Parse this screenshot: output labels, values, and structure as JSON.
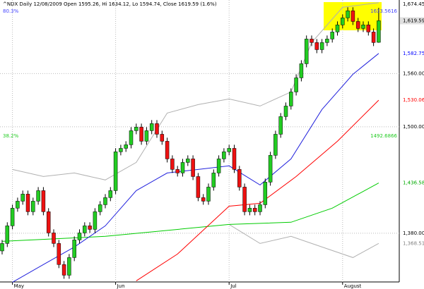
{
  "chart_data": {
    "type": "candlestick",
    "title": "^NDX Daily 12/08/2009 Open 1595.26, Hi 1634.12, Lo 1594.74, Close 1619.59 (1.6%)",
    "categories": [
      null,
      null,
      "May",
      null,
      null,
      null,
      null,
      null,
      null,
      null,
      null,
      null,
      null,
      null,
      null,
      null,
      null,
      null,
      null,
      null,
      null,
      null,
      "Jun",
      null,
      null,
      null,
      null,
      null,
      null,
      null,
      null,
      null,
      null,
      null,
      null,
      null,
      null,
      null,
      null,
      null,
      null,
      null,
      null,
      null,
      "Jul",
      null,
      null,
      null,
      null,
      null,
      null,
      null,
      null,
      null,
      null,
      null,
      null,
      null,
      null,
      null,
      null,
      null,
      null,
      null,
      null,
      null,
      "August",
      null,
      null,
      null,
      null,
      null,
      null,
      null
    ],
    "open": [
      1360.0,
      1368.4,
      1388.3,
      1408.2,
      1416.1,
      1424.1,
      1404.2,
      1416.1,
      1428.0,
      1404.2,
      1380.3,
      1368.4,
      1344.6,
      1332.6,
      1352.5,
      1372.4,
      1380.3,
      1388.3,
      1384.3,
      1404.2,
      1412.1,
      1420.1,
      1428.0,
      1471.8,
      1475.7,
      1479.7,
      1495.6,
      1499.6,
      1483.7,
      1495.6,
      1503.6,
      1491.6,
      1483.7,
      1463.8,
      1451.9,
      1447.9,
      1459.8,
      1463.8,
      1443.9,
      1420.1,
      1416.1,
      1432.0,
      1447.9,
      1463.8,
      1471.8,
      1475.7,
      1451.9,
      1432.0,
      1404.2,
      1408.2,
      1404.2,
      1412.1,
      1437.6,
      1467.8,
      1491.6,
      1511.5,
      1523.4,
      1539.3,
      1555.2,
      1571.1,
      1599.0,
      1595.0,
      1587.0,
      1595.0,
      1599.0,
      1606.9,
      1614.9,
      1622.8,
      1630.8,
      1618.8,
      1610.9,
      1614.9,
      1606.9,
      1595.26
    ],
    "high": [
      1372.4,
      1392.3,
      1412.2,
      1420.1,
      1428.1,
      1428.1,
      1420.1,
      1432.0,
      1432.0,
      1408.2,
      1384.3,
      1372.4,
      1348.6,
      1356.5,
      1376.4,
      1384.3,
      1392.3,
      1392.3,
      1408.2,
      1416.1,
      1424.1,
      1432.0,
      1475.8,
      1479.7,
      1483.7,
      1499.6,
      1503.6,
      1503.6,
      1499.6,
      1507.6,
      1507.6,
      1495.6,
      1487.7,
      1467.8,
      1455.9,
      1463.8,
      1467.8,
      1467.8,
      1447.9,
      1424.1,
      1436.0,
      1451.9,
      1467.8,
      1475.8,
      1479.7,
      1479.7,
      1455.9,
      1436.0,
      1412.2,
      1412.2,
      1416.1,
      1441.6,
      1471.8,
      1495.6,
      1515.5,
      1527.4,
      1543.3,
      1559.2,
      1575.1,
      1603.0,
      1603.0,
      1599.0,
      1599.0,
      1603.0,
      1610.9,
      1618.9,
      1626.8,
      1634.8,
      1634.8,
      1622.8,
      1618.9,
      1618.9,
      1610.9,
      1634.12
    ],
    "low": [
      1356.0,
      1364.4,
      1384.3,
      1404.2,
      1412.1,
      1400.2,
      1400.2,
      1412.1,
      1400.2,
      1376.3,
      1364.4,
      1340.6,
      1328.6,
      1328.6,
      1348.5,
      1368.4,
      1376.3,
      1380.3,
      1380.3,
      1400.2,
      1408.1,
      1416.1,
      1424.0,
      1467.8,
      1471.7,
      1475.7,
      1491.6,
      1479.7,
      1479.7,
      1491.6,
      1487.6,
      1479.7,
      1459.8,
      1447.9,
      1443.9,
      1443.9,
      1455.8,
      1439.9,
      1416.1,
      1412.1,
      1412.1,
      1428.0,
      1443.9,
      1459.8,
      1467.8,
      1447.9,
      1428.0,
      1400.2,
      1400.2,
      1400.2,
      1400.2,
      1408.1,
      1433.6,
      1463.8,
      1487.6,
      1507.5,
      1519.4,
      1535.3,
      1551.2,
      1567.1,
      1591.0,
      1583.0,
      1583.0,
      1591.0,
      1595.0,
      1602.9,
      1610.9,
      1618.8,
      1614.8,
      1606.9,
      1606.9,
      1602.9,
      1591.0,
      1594.74
    ],
    "close": [
      1368.4,
      1388.3,
      1408.2,
      1416.1,
      1424.1,
      1404.2,
      1416.1,
      1428.0,
      1404.2,
      1380.3,
      1368.4,
      1344.6,
      1332.6,
      1352.5,
      1372.4,
      1380.3,
      1388.3,
      1384.3,
      1404.2,
      1412.1,
      1420.1,
      1428.0,
      1471.8,
      1475.7,
      1479.7,
      1495.6,
      1499.6,
      1483.7,
      1495.6,
      1503.6,
      1491.6,
      1483.7,
      1463.8,
      1451.9,
      1447.9,
      1459.8,
      1463.8,
      1443.9,
      1420.1,
      1416.1,
      1432.0,
      1447.9,
      1463.8,
      1471.8,
      1475.7,
      1451.9,
      1432.0,
      1404.2,
      1408.2,
      1404.2,
      1412.1,
      1437.6,
      1467.8,
      1491.6,
      1511.5,
      1523.4,
      1539.3,
      1555.2,
      1571.1,
      1599.0,
      1595.0,
      1587.0,
      1595.0,
      1599.0,
      1606.9,
      1614.9,
      1622.8,
      1630.8,
      1618.8,
      1610.9,
      1614.9,
      1606.9,
      1595.0,
      1619.59
    ],
    "up_color": "#22cc22",
    "down_color": "#ee1111",
    "overlays": [
      {
        "color": "#b0b0b0",
        "x": [
          2,
          8,
          14,
          20,
          26,
          32,
          38,
          44,
          50,
          56,
          60,
          66,
          73
        ],
        "values": [
          1451.9,
          1443.9,
          1447.9,
          1440.0,
          1459.8,
          1515.5,
          1525.0,
          1531.4,
          1523.4,
          1539.3,
          1595.0,
          1634.7,
          1640.0
        ]
      },
      {
        "color": "#b0b0b0",
        "x": [
          44,
          50,
          56,
          62,
          68,
          73
        ],
        "values": [
          1389.9,
          1368.4,
          1376.4,
          1364.4,
          1352.5,
          1368.51
        ]
      },
      {
        "color": "#00cc00",
        "x": [
          0,
          20,
          44,
          56,
          64,
          73
        ],
        "values": [
          1370.8,
          1376.4,
          1389.9,
          1392.3,
          1408.2,
          1436.58
        ]
      },
      {
        "color": "#ff0000",
        "x": [
          26,
          34,
          44,
          50,
          57,
          65,
          73
        ],
        "values": [
          1326.3,
          1356.5,
          1410.5,
          1413.7,
          1443.9,
          1483.7,
          1530.06
        ]
      },
      {
        "color": "#2222dd",
        "x": [
          2,
          8,
          14,
          20,
          26,
          32,
          38,
          44,
          50,
          56,
          62,
          68,
          73
        ],
        "values": [
          1324.7,
          1344.6,
          1364.4,
          1388.3,
          1428.0,
          1447.9,
          1451.9,
          1455.9,
          1434.4,
          1463.8,
          1519.5,
          1559.2,
          1582.75
        ]
      }
    ],
    "price_labels": [
      {
        "value": 1674.45,
        "label": "1,674.45",
        "color": "#000000"
      },
      {
        "value": 1619.59,
        "label": "1,619.59",
        "color": "#000000"
      },
      {
        "value": 1582.75,
        "label": "1,582.75",
        "color": "#0000ff"
      },
      {
        "value": 1530.06,
        "label": "1,530.06",
        "color": "#ff0000"
      },
      {
        "value": 1436.58,
        "label": "1,436.58",
        "color": "#00aa00"
      },
      {
        "value": 1368.51,
        "label": "1,368.51",
        "color": "#808080"
      }
    ],
    "fib_levels": [
      {
        "value": 1633.5616,
        "pct": "80.3%",
        "color": "#4444ff"
      },
      {
        "value": 1492.6866,
        "pct": "38.2%",
        "color": "#22cc22"
      }
    ],
    "ylim": [
      1325,
      1643
    ],
    "yticks": [
      {
        "value": 1380,
        "label": "1,380.00"
      },
      {
        "value": 1500,
        "label": "1,500.00"
      },
      {
        "value": 1560,
        "label": "1,560.00"
      }
    ],
    "grid": true
  }
}
